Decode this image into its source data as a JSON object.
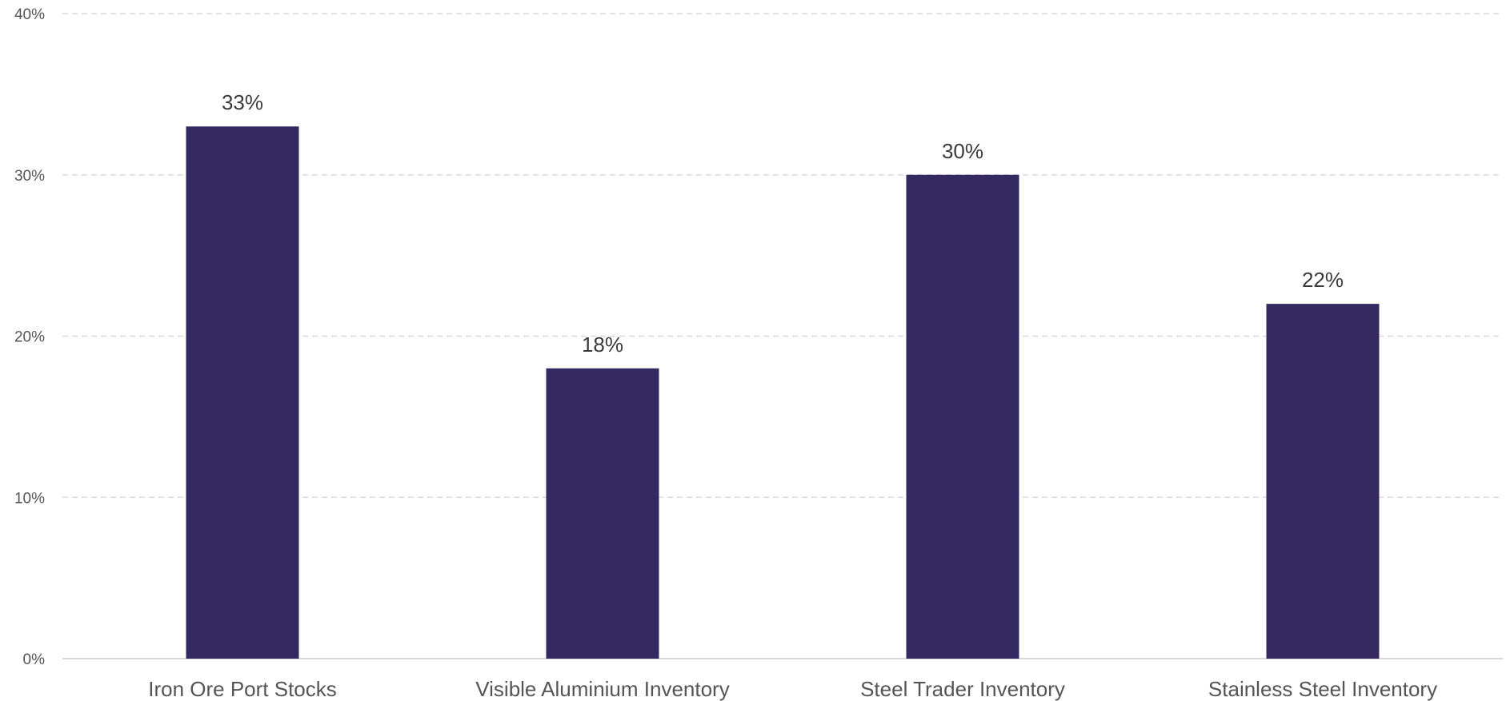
{
  "chart_data": {
    "type": "bar",
    "categories": [
      "Iron Ore Port Stocks",
      "Visible Aluminium Inventory",
      "Steel Trader Inventory",
      "Stainless Steel Inventory"
    ],
    "values": [
      33,
      18,
      30,
      22
    ],
    "value_labels": [
      "33%",
      "18%",
      "30%",
      "22%"
    ],
    "y_ticks": [
      0,
      10,
      20,
      30,
      40
    ],
    "y_tick_labels": [
      "0%",
      "10%",
      "20%",
      "30%",
      "40%"
    ],
    "ylim": [
      0,
      40
    ],
    "grid": true,
    "grid_style": "dashed",
    "legend": "none",
    "bar_color": "#342960",
    "gridline_color": "#d9d9d9",
    "axis_color": "#d9d9d9"
  }
}
